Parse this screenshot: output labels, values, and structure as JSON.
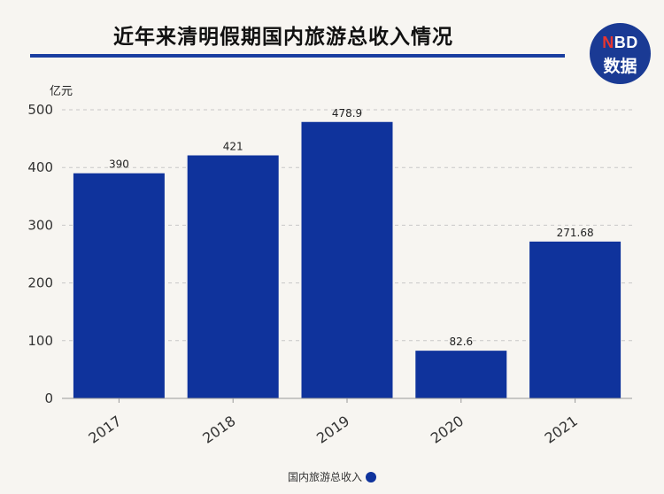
{
  "header": {
    "title": "近年来清明假期国内旅游总收入情况"
  },
  "logo": {
    "brand_n": "N",
    "brand_rest": "BD",
    "sub": "数据"
  },
  "colors": {
    "bar": "#0f339c",
    "title_rule": "#1a3ea0",
    "logo_bg": "#1a3a94"
  },
  "chart_data": {
    "type": "bar",
    "title": "近年来清明假期国内旅游总收入情况",
    "ylabel": "亿元",
    "xlabel": "",
    "categories": [
      "2017",
      "2018",
      "2019",
      "2020",
      "2021"
    ],
    "series": [
      {
        "name": "国内旅游总收入",
        "values": [
          390,
          421,
          478.9,
          82.6,
          271.68
        ],
        "labels": [
          "390",
          "421",
          "478.9",
          "82.6",
          "271.68"
        ]
      }
    ],
    "ylim": [
      0,
      500
    ],
    "yticks": [
      0,
      100,
      200,
      300,
      400,
      500
    ],
    "grid": true,
    "legend_position": "bottom-center"
  }
}
